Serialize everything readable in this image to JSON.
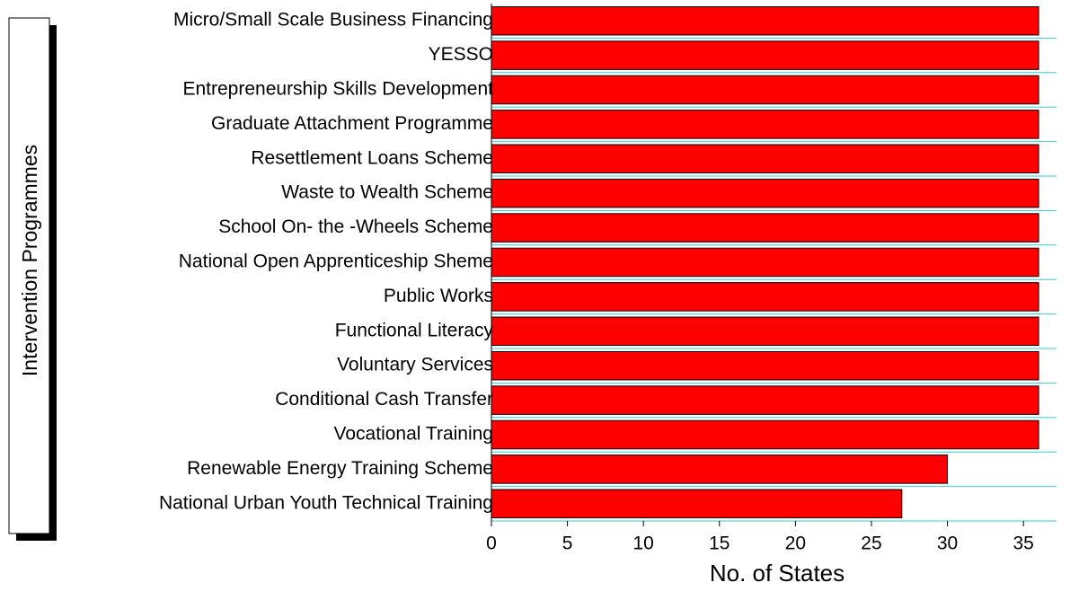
{
  "chart_data": {
    "type": "bar",
    "orientation": "horizontal",
    "x_label": "No. of States",
    "y_label": "Intervention Programmes",
    "categories": [
      "Micro/Small Scale Business Financing",
      "YESSO",
      "Entrepreneurship Skills Development",
      "Graduate Attachment Programme",
      "Resettlement Loans Scheme",
      "Waste to Wealth Scheme",
      "School On- the -Wheels Scheme",
      "National Open Apprenticeship Sheme",
      "Public Works",
      "Functional Literacy",
      "Voluntary Services",
      "Conditional Cash Transfer",
      "Vocational Training",
      "Renewable Energy Training Scheme",
      "National Urban Youth Technical Training"
    ],
    "values": [
      36,
      36,
      36,
      36,
      36,
      36,
      36,
      36,
      36,
      36,
      36,
      36,
      36,
      30,
      27
    ],
    "color": "#ff0000",
    "grid_color": "#33cccc",
    "xlim": [
      0,
      37
    ],
    "xticks": [
      0,
      5,
      10,
      15,
      20,
      25,
      30,
      35
    ],
    "grid": true
  }
}
